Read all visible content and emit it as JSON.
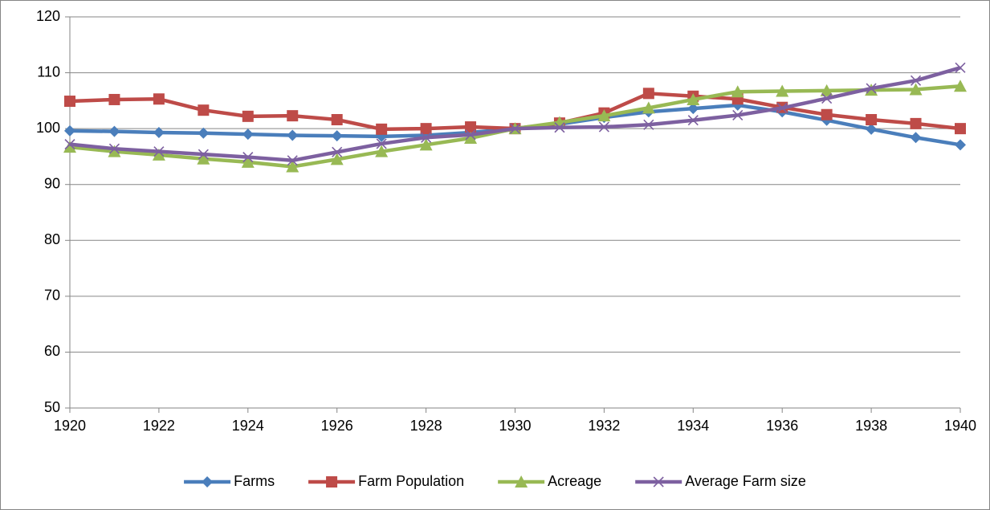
{
  "chart_data": {
    "type": "line",
    "x": [
      1920,
      1921,
      1922,
      1923,
      1924,
      1925,
      1926,
      1927,
      1928,
      1929,
      1930,
      1931,
      1932,
      1933,
      1934,
      1935,
      1936,
      1937,
      1938,
      1939,
      1940
    ],
    "series": [
      {
        "name": "Farms",
        "color": "#4a7ebb",
        "marker": "diamond",
        "values": [
          99.6,
          99.5,
          99.3,
          99.2,
          99.0,
          98.8,
          98.7,
          98.6,
          98.8,
          99.3,
          100,
          100.8,
          102,
          103,
          103.6,
          104.2,
          103,
          101.5,
          99.9,
          98.4,
          97.1
        ]
      },
      {
        "name": "Farm Population",
        "color": "#be4b48",
        "marker": "square",
        "values": [
          104.9,
          105.2,
          105.3,
          103.3,
          102.2,
          102.3,
          101.6,
          99.9,
          100,
          100.3,
          100,
          101,
          102.8,
          106.3,
          105.8,
          105.3,
          103.8,
          102.5,
          101.6,
          100.9,
          100
        ]
      },
      {
        "name": "Acreage",
        "color": "#98b954",
        "marker": "triangle",
        "values": [
          96.7,
          95.9,
          95.3,
          94.6,
          94.0,
          93.2,
          94.5,
          95.9,
          97.1,
          98.3,
          100,
          101.1,
          102.3,
          103.7,
          105.2,
          106.6,
          106.7,
          106.8,
          106.9,
          107.0,
          107.6
        ]
      },
      {
        "name": "Average Farm size",
        "color": "#7d60a0",
        "marker": "x",
        "values": [
          97.2,
          96.4,
          95.9,
          95.4,
          94.9,
          94.3,
          95.8,
          97.3,
          98.4,
          98.9,
          100,
          100.2,
          100.3,
          100.7,
          101.5,
          102.4,
          103.7,
          105.4,
          107.2,
          108.6,
          110.9
        ]
      }
    ],
    "xlim": [
      1920,
      1940
    ],
    "xticks": [
      1920,
      1922,
      1924,
      1926,
      1928,
      1930,
      1932,
      1934,
      1936,
      1938,
      1940
    ],
    "ylim": [
      50,
      120
    ],
    "yticks": [
      50,
      60,
      70,
      80,
      90,
      100,
      110,
      120
    ],
    "grid": true,
    "legend": "bottom"
  }
}
